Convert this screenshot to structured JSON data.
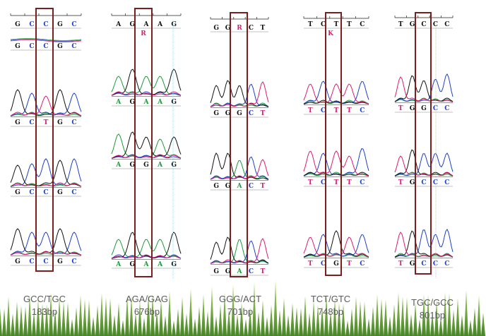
{
  "panels": [
    {
      "id": "p1",
      "top_row": {
        "bases": [
          "G",
          "C",
          "C",
          "G",
          "C"
        ],
        "colors": [
          "#111111",
          "#1c3fcc",
          "#1c3fcc",
          "#111111",
          "#1c3fcc"
        ]
      },
      "rows": [
        {
          "bases": [
            "G",
            "C",
            "C",
            "G",
            "C"
          ],
          "colors": [
            "#111111",
            "#1c3fcc",
            "#1c3fcc",
            "#111111",
            "#1c3fcc"
          ]
        },
        {
          "bases": [
            "G",
            "C",
            "T",
            "G",
            "C"
          ],
          "colors": [
            "#111111",
            "#1c3fcc",
            "#e0196f",
            "#111111",
            "#1c3fcc"
          ]
        },
        {
          "bases": [
            "G",
            "C",
            "C",
            "G",
            "C"
          ],
          "colors": [
            "#111111",
            "#1c3fcc",
            "#1c3fcc",
            "#111111",
            "#1c3fcc"
          ]
        },
        {
          "bases": [
            "G",
            "C",
            "C",
            "G",
            "C"
          ],
          "colors": [
            "#111111",
            "#1c3fcc",
            "#1c3fcc",
            "#111111",
            "#1c3fcc"
          ]
        }
      ],
      "genotype": "GCC/TGC",
      "size": "183bp"
    },
    {
      "id": "p2",
      "top_row": {
        "bases": [
          "A",
          "G",
          "A",
          "A",
          "G"
        ],
        "colors": [
          "#111111",
          "#111111",
          "#111111",
          "#111111",
          "#111111"
        ],
        "marker": "R"
      },
      "rows": [
        {
          "bases": [
            "A",
            "G",
            "A",
            "A",
            "G"
          ],
          "colors": [
            "#1a9a3a",
            "#111111",
            "#1a9a3a",
            "#1a9a3a",
            "#111111"
          ]
        },
        {
          "bases": [
            "A",
            "G",
            "G",
            "A",
            "G"
          ],
          "colors": [
            "#1a9a3a",
            "#111111",
            "#111111",
            "#1a9a3a",
            "#111111"
          ]
        },
        {
          "bases": [
            "A",
            "G",
            "A",
            "A",
            "G"
          ],
          "colors": [
            "#1a9a3a",
            "#111111",
            "#1a9a3a",
            "#1a9a3a",
            "#111111"
          ]
        }
      ],
      "genotype": "AGA/GAG",
      "size": "676bp"
    },
    {
      "id": "p3",
      "top_row": {
        "bases": [
          "G",
          "G",
          "R",
          "C",
          "T"
        ],
        "colors": [
          "#111111",
          "#111111",
          "#e0196f",
          "#111111",
          "#111111"
        ]
      },
      "rows": [
        {
          "bases": [
            "G",
            "G",
            "G",
            "C",
            "T"
          ],
          "colors": [
            "#111111",
            "#111111",
            "#111111",
            "#1c3fcc",
            "#e0196f"
          ]
        },
        {
          "bases": [
            "G",
            "G",
            "A",
            "C",
            "T"
          ],
          "colors": [
            "#111111",
            "#111111",
            "#1a9a3a",
            "#1c3fcc",
            "#e0196f"
          ]
        },
        {
          "bases": [
            "G",
            "G",
            "A",
            "C",
            "T"
          ],
          "colors": [
            "#111111",
            "#111111",
            "#1a9a3a",
            "#1c3fcc",
            "#e0196f"
          ]
        }
      ],
      "genotype": "GGG/ACT",
      "size": "701bp"
    },
    {
      "id": "p4",
      "top_row": {
        "bases": [
          "T",
          "C",
          "T",
          "T",
          "C"
        ],
        "colors": [
          "#111111",
          "#111111",
          "#111111",
          "#111111",
          "#111111"
        ],
        "marker": "K"
      },
      "rows": [
        {
          "bases": [
            "T",
            "C",
            "T",
            "T",
            "C"
          ],
          "colors": [
            "#e0196f",
            "#1c3fcc",
            "#e0196f",
            "#e0196f",
            "#1c3fcc"
          ]
        },
        {
          "bases": [
            "T",
            "C",
            "T",
            "T",
            "C"
          ],
          "colors": [
            "#e0196f",
            "#1c3fcc",
            "#e0196f",
            "#e0196f",
            "#1c3fcc"
          ]
        },
        {
          "bases": [
            "T",
            "C",
            "G",
            "T",
            "C"
          ],
          "colors": [
            "#e0196f",
            "#1c3fcc",
            "#111111",
            "#e0196f",
            "#1c3fcc"
          ]
        }
      ],
      "genotype": "TCT/GTC",
      "size": "748bp"
    },
    {
      "id": "p5",
      "top_row": {
        "bases": [
          "T",
          "G",
          "C",
          "C",
          "C"
        ],
        "colors": [
          "#111111",
          "#111111",
          "#111111",
          "#111111",
          "#111111"
        ]
      },
      "rows": [
        {
          "bases": [
            "T",
            "G",
            "G",
            "C",
            "C"
          ],
          "colors": [
            "#e0196f",
            "#111111",
            "#111111",
            "#1c3fcc",
            "#1c3fcc"
          ]
        },
        {
          "bases": [
            "T",
            "G",
            "C",
            "C",
            "C"
          ],
          "colors": [
            "#e0196f",
            "#111111",
            "#1c3fcc",
            "#1c3fcc",
            "#1c3fcc"
          ]
        },
        {
          "bases": [
            "T",
            "G",
            "C",
            "C",
            "C"
          ],
          "colors": [
            "#e0196f",
            "#111111",
            "#1c3fcc",
            "#1c3fcc",
            "#1c3fcc"
          ]
        }
      ],
      "genotype": "TGC/GCC",
      "size": "801bp"
    }
  ],
  "colors": {
    "highlight_box": "#7a1f1f",
    "trace_A": "#1a9a3a",
    "trace_C": "#1c3fcc",
    "trace_G": "#111111",
    "trace_T": "#e0196f",
    "grass": "#6aa832",
    "caption": "#5a5a5a"
  }
}
